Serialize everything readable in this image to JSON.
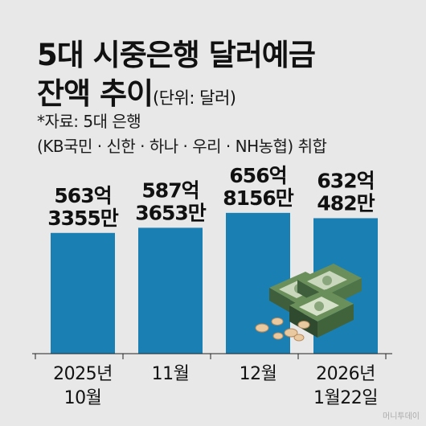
{
  "header": {
    "title_line1": "5대 시중은행 달러예금",
    "title_line2": "잔액 추이",
    "unit": "(단위: 달러)",
    "source": "*자료: 5대 은행",
    "source_detail": "(KB국민 · 신한 · 하나 · 우리 · NH농협) 취합"
  },
  "chart_data": {
    "type": "bar",
    "categories": [
      [
        "2025년",
        "10월"
      ],
      [
        "11월"
      ],
      [
        "12월"
      ],
      [
        "2026년",
        "1월22일"
      ]
    ],
    "values": [
      56333550000,
      58736530000,
      65681560000,
      63204820000
    ],
    "value_labels": [
      [
        "563억",
        "3355만"
      ],
      [
        "587억",
        "3653만"
      ],
      [
        "656억",
        "8156만"
      ],
      [
        "632억",
        "482만"
      ]
    ],
    "ylim": [
      0,
      66000000000
    ],
    "bar_color": "#1a80b3",
    "grid": false
  },
  "watermark": "머니투데이"
}
